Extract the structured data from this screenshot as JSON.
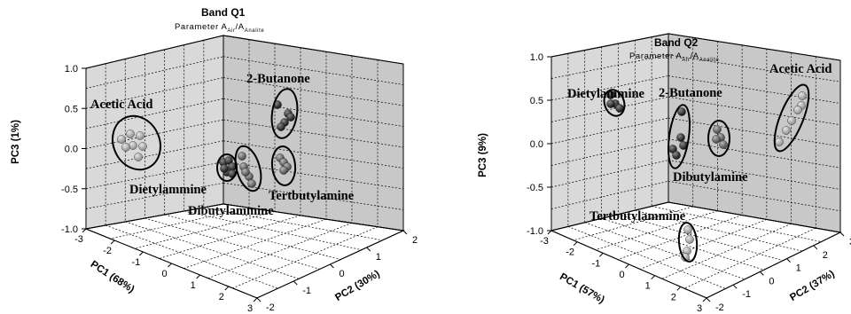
{
  "chart_data": [
    {
      "type": "scatter",
      "title": "Band Q1",
      "subtitle": {
        "prefix": "Parameter A",
        "sub1": "Air",
        "mid": "/A",
        "sub2": "Analite"
      },
      "zlabel": "PC3 (1%)",
      "xlabel": "PC1 (68%)",
      "ylabel": "PC2 (30%)",
      "zlim": [
        -1.0,
        1.0
      ],
      "z_ticks": [
        "1.0",
        "0.5",
        "0.0",
        "-0.5",
        "-1.0"
      ],
      "x_ticks": [
        "-3",
        "-2",
        "-1",
        "0",
        "1",
        "2",
        "3"
      ],
      "y_ticks": [
        "2",
        "1",
        "0",
        "-1",
        "-2"
      ],
      "groups": [
        {
          "name": "Acetic Acid",
          "color": "#9a9a9a"
        },
        {
          "name": "2-Butanone",
          "color": "#1a1a1a"
        },
        {
          "name": "Dietylammine",
          "color": "#1a1a1a"
        },
        {
          "name": "Dibutylammine",
          "color": "#555555"
        },
        {
          "name": "Tertbutylamine",
          "color": "#777777"
        }
      ]
    },
    {
      "type": "scatter",
      "title": "Band Q2",
      "subtitle": {
        "prefix": "Parameter A",
        "sub1": "Air",
        "mid": "/A",
        "sub2": "Analite"
      },
      "zlabel": "PC3 (9%)",
      "xlabel": "PC1 (57%)",
      "ylabel": "PC2 (37%)",
      "zlim": [
        -1.0,
        1.0
      ],
      "z_ticks": [
        "1.0",
        "0.5",
        "0.0",
        "-0.5",
        "-1.0"
      ],
      "x_ticks": [
        "-3",
        "-2",
        "-1",
        "0",
        "1",
        "2",
        "3"
      ],
      "y_ticks": [
        "3",
        "2",
        "1",
        "0",
        "-1",
        "-2"
      ],
      "groups": [
        {
          "name": "Dietylammine",
          "color": "#1a1a1a"
        },
        {
          "name": "2-Butanone",
          "color": "#1a1a1a"
        },
        {
          "name": "Acetic Acid",
          "color": "#9a9a9a"
        },
        {
          "name": "Dibutylamine",
          "color": "#555555"
        },
        {
          "name": "Tertbutylammine",
          "color": "#8a8a8a"
        }
      ]
    }
  ]
}
